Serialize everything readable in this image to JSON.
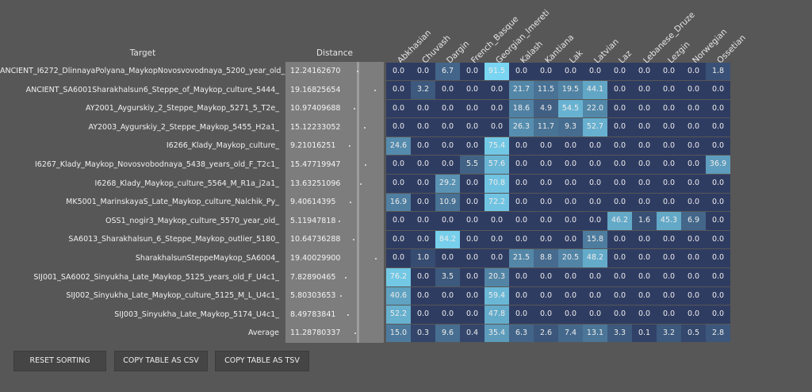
{
  "headers": {
    "target": "Target",
    "distance": "Distance"
  },
  "columns": [
    "Abkhasian",
    "Chuvash",
    "Dargin",
    "French_Basque",
    "Georgian_Imereti",
    "Kalash",
    "Kantiana",
    "Lak",
    "Latvian",
    "Laz",
    "Lebanese_Druze",
    "Lezgin",
    "Norwegian",
    "Ossetian"
  ],
  "rows": [
    {
      "target": "ANCIENT_I6272_DlinnayaPolyana_MaykopNovosvovodnaya_5200_year_old_",
      "distance": "12.24162670",
      "dist_value": 12.2416267,
      "values": [
        "0.0",
        "0.0",
        "6.7",
        "0.0",
        "91.5",
        "0.0",
        "0.0",
        "0.0",
        "0.0",
        "0.0",
        "0.0",
        "0.0",
        "0.0",
        "1.8"
      ]
    },
    {
      "target": "ANCIENT_SA6001Sharakhalsun6_Steppe_of_Maykop_culture_5444_",
      "distance": "19.16825654",
      "dist_value": 19.16825654,
      "values": [
        "0.0",
        "3.2",
        "0.0",
        "0.0",
        "0.0",
        "21.7",
        "11.5",
        "19.5",
        "44.1",
        "0.0",
        "0.0",
        "0.0",
        "0.0",
        "0.0"
      ]
    },
    {
      "target": "AY2001_Aygurskiy_2_Steppe_Maykop_5271_5_T2e_",
      "distance": "10.97409688",
      "dist_value": 10.97409688,
      "values": [
        "0.0",
        "0.0",
        "0.0",
        "0.0",
        "0.0",
        "18.6",
        "4.9",
        "54.5",
        "22.0",
        "0.0",
        "0.0",
        "0.0",
        "0.0",
        "0.0"
      ]
    },
    {
      "target": "AY2003_Aygurskiy_2_Steppe_Maykop_5455_H2a1_",
      "distance": "15.12233052",
      "dist_value": 15.12233052,
      "values": [
        "0.0",
        "0.0",
        "0.0",
        "0.0",
        "0.0",
        "26.3",
        "11.7",
        "9.3",
        "52.7",
        "0.0",
        "0.0",
        "0.0",
        "0.0",
        "0.0"
      ]
    },
    {
      "target": "I6266_Klady_Maykop_culture_",
      "distance": "9.21016251",
      "dist_value": 9.21016251,
      "values": [
        "24.6",
        "0.0",
        "0.0",
        "0.0",
        "75.4",
        "0.0",
        "0.0",
        "0.0",
        "0.0",
        "0.0",
        "0.0",
        "0.0",
        "0.0",
        "0.0"
      ]
    },
    {
      "target": "I6267_Klady_Maykop_Novosvobodnaya_5438_years_old_F_T2c1_",
      "distance": "15.47719947",
      "dist_value": 15.47719947,
      "values": [
        "0.0",
        "0.0",
        "0.0",
        "5.5",
        "57.6",
        "0.0",
        "0.0",
        "0.0",
        "0.0",
        "0.0",
        "0.0",
        "0.0",
        "0.0",
        "36.9"
      ]
    },
    {
      "target": "I6268_Klady_Maykop_culture_5564_M_R1a_j2a1_",
      "distance": "13.63251096",
      "dist_value": 13.63251096,
      "values": [
        "0.0",
        "0.0",
        "29.2",
        "0.0",
        "70.8",
        "0.0",
        "0.0",
        "0.0",
        "0.0",
        "0.0",
        "0.0",
        "0.0",
        "0.0",
        "0.0"
      ]
    },
    {
      "target": "MK5001_MarinskayaS_Late_Maykop_culture_Nalchik_Py_",
      "distance": "9.40614395",
      "dist_value": 9.40614395,
      "values": [
        "16.9",
        "0.0",
        "10.9",
        "0.0",
        "72.2",
        "0.0",
        "0.0",
        "0.0",
        "0.0",
        "0.0",
        "0.0",
        "0.0",
        "0.0",
        "0.0"
      ]
    },
    {
      "target": "OSS1_nogir3_Maykop_culture_5570_year_old_",
      "distance": "5.11947818",
      "dist_value": 5.11947818,
      "values": [
        "0.0",
        "0.0",
        "0.0",
        "0.0",
        "0.0",
        "0.0",
        "0.0",
        "0.0",
        "0.0",
        "46.2",
        "1.6",
        "45.3",
        "6.9",
        "0.0"
      ]
    },
    {
      "target": "SA6013_Sharakhalsun_6_Steppe_Maykop_outlier_5180_",
      "distance": "10.64736288",
      "dist_value": 10.64736288,
      "values": [
        "0.0",
        "0.0",
        "84.2",
        "0.0",
        "0.0",
        "0.0",
        "0.0",
        "0.0",
        "15.8",
        "0.0",
        "0.0",
        "0.0",
        "0.0",
        "0.0"
      ]
    },
    {
      "target": "SharakhalsunSteppeMaykop_SA6004_",
      "distance": "19.40029900",
      "dist_value": 19.400299,
      "values": [
        "0.0",
        "1.0",
        "0.0",
        "0.0",
        "0.0",
        "21.5",
        "8.8",
        "20.5",
        "48.2",
        "0.0",
        "0.0",
        "0.0",
        "0.0",
        "0.0"
      ]
    },
    {
      "target": "SIJ001_SA6002_Sinyukha_Late_Maykop_5125_years_old_F_U4c1_",
      "distance": "7.82890465",
      "dist_value": 7.82890465,
      "values": [
        "76.2",
        "0.0",
        "3.5",
        "0.0",
        "20.3",
        "0.0",
        "0.0",
        "0.0",
        "0.0",
        "0.0",
        "0.0",
        "0.0",
        "0.0",
        "0.0"
      ]
    },
    {
      "target": "SIJ002_Sinyukha_Late_Maykop_culture_5125_M_L_U4c1_",
      "distance": "5.80303653",
      "dist_value": 5.80303653,
      "values": [
        "40.6",
        "0.0",
        "0.0",
        "0.0",
        "59.4",
        "0.0",
        "0.0",
        "0.0",
        "0.0",
        "0.0",
        "0.0",
        "0.0",
        "0.0",
        "0.0"
      ]
    },
    {
      "target": "SIJ003_Sinyukha_Late_Maykop_5174_U4c1_",
      "distance": "8.49783841",
      "dist_value": 8.49783841,
      "values": [
        "52.2",
        "0.0",
        "0.0",
        "0.0",
        "47.8",
        "0.0",
        "0.0",
        "0.0",
        "0.0",
        "0.0",
        "0.0",
        "0.0",
        "0.0",
        "0.0"
      ]
    },
    {
      "target": "Average",
      "distance": "11.28780337",
      "dist_value": 11.28780337,
      "values": [
        "15.0",
        "0.3",
        "9.6",
        "0.4",
        "35.4",
        "6.3",
        "2.6",
        "7.4",
        "13.1",
        "3.3",
        "0.1",
        "3.2",
        "0.5",
        "2.8"
      ]
    }
  ],
  "buttons": {
    "reset": "RESET SORTING",
    "csv": "COPY TABLE AS CSV",
    "tsv": "COPY TABLE AS TSV"
  },
  "colors": {
    "cell_base": "#2f3c62",
    "cell_high": "#7ad8f4",
    "page_bg": "#575757"
  }
}
